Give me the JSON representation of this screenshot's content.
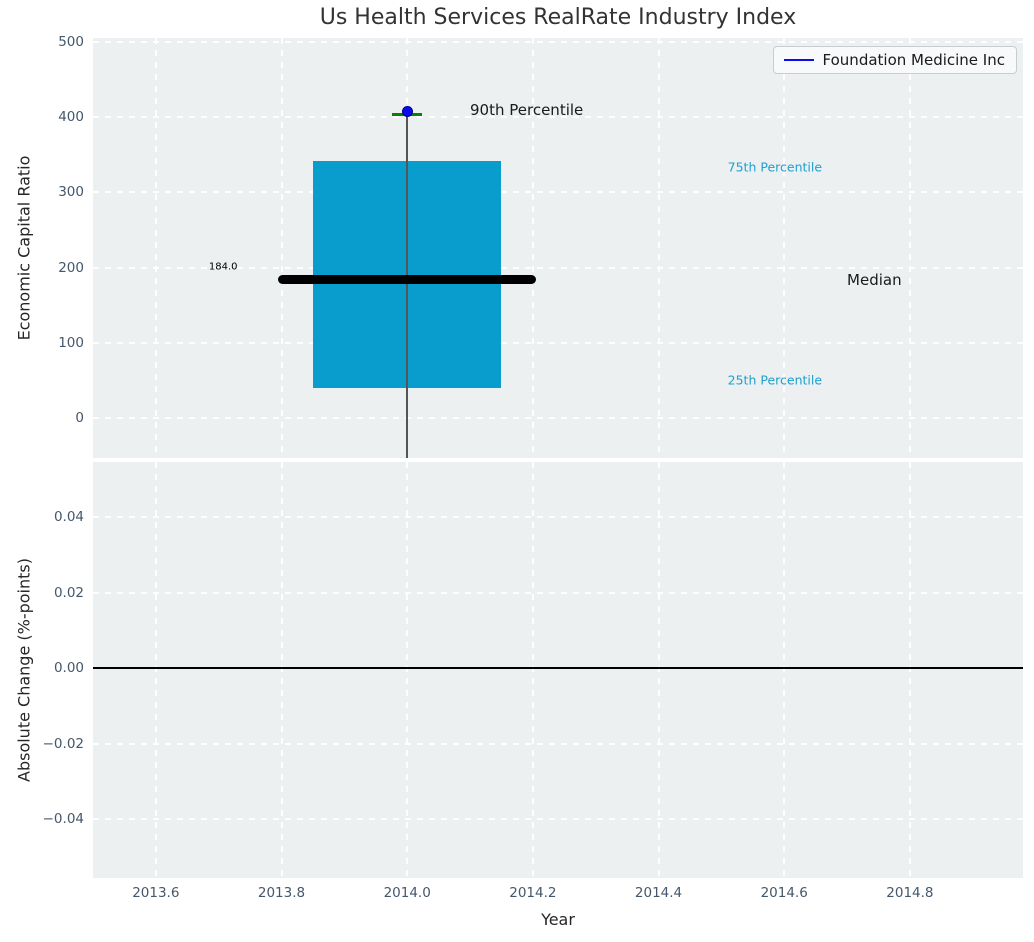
{
  "colors": {
    "plot_bg": "#ecf0f1",
    "grid": "#ffffff",
    "tick_label": "#45576b",
    "axis_label": "#262626",
    "title": "#333333",
    "box_fill": "#099dce",
    "median_line": "#000000",
    "whisker": "#555555",
    "cap_green": "#0b7f0b",
    "point_blue": "#0b0bee",
    "annotation_cyan": "#1f9fd0",
    "annotation_dark": "#1a1a1a",
    "zero_line": "#000000"
  },
  "chart_data": [
    {
      "type": "box",
      "title": "Us Health Services RealRate Industry Index",
      "ylabel": "Economic Capital Ratio",
      "xlim": [
        2013.5,
        2014.98
      ],
      "ylim": [
        -53,
        505
      ],
      "grid": true,
      "show_xtick_labels": false,
      "xticks": [
        {
          "v": 2013.6,
          "label": "2013.6"
        },
        {
          "v": 2013.8,
          "label": "2013.8"
        },
        {
          "v": 2014.0,
          "label": "2014.0"
        },
        {
          "v": 2014.2,
          "label": "2014.2"
        },
        {
          "v": 2014.4,
          "label": "2014.4"
        },
        {
          "v": 2014.6,
          "label": "2014.6"
        },
        {
          "v": 2014.8,
          "label": "2014.8"
        }
      ],
      "yticks": [
        {
          "v": 0,
          "label": "0"
        },
        {
          "v": 100,
          "label": "100"
        },
        {
          "v": 200,
          "label": "200"
        },
        {
          "v": 300,
          "label": "300"
        },
        {
          "v": 400,
          "label": "400"
        },
        {
          "v": 500,
          "label": "500"
        }
      ],
      "legend": {
        "label": "Foundation Medicine Inc",
        "position": "upper right"
      },
      "series": [
        {
          "name": "Foundation Medicine Inc",
          "x": 2014.0,
          "company_value": 408,
          "percentile_90": 404,
          "percentile_75": 342,
          "median": 184.0,
          "percentile_25": 40,
          "whisker_bottom_clipped_at": -53,
          "box_left": 2013.85,
          "box_right": 2014.15,
          "median_line_left": 2013.795,
          "median_line_right": 2014.205,
          "cap_halfwidth": 0.024
        }
      ],
      "annotations": [
        {
          "text": "90th Percentile",
          "x": 2014.1,
          "y": 410,
          "anchor": "start",
          "size": 15,
          "color": "#1a1a1a"
        },
        {
          "text": "75th Percentile",
          "x": 2014.51,
          "y": 334,
          "anchor": "start",
          "size": 12.5,
          "color": "#1f9fd0"
        },
        {
          "text": "Median",
          "x": 2014.7,
          "y": 184,
          "anchor": "start",
          "size": 15,
          "color": "#1a1a1a"
        },
        {
          "text": "25th Percentile",
          "x": 2014.51,
          "y": 50,
          "anchor": "start",
          "size": 12.5,
          "color": "#1f9fd0"
        },
        {
          "text": "184.0",
          "x": 2013.73,
          "y": 201,
          "anchor": "end",
          "size": 10,
          "color": "#000000"
        }
      ]
    },
    {
      "type": "line",
      "ylabel": "Absolute Change (%-points)",
      "xlabel": "Year",
      "xlim": [
        2013.5,
        2014.98
      ],
      "ylim": [
        -0.0556,
        0.0546
      ],
      "grid": true,
      "show_xtick_labels": true,
      "xticks": [
        {
          "v": 2013.6,
          "label": "2013.6"
        },
        {
          "v": 2013.8,
          "label": "2013.8"
        },
        {
          "v": 2014.0,
          "label": "2014.0"
        },
        {
          "v": 2014.2,
          "label": "2014.2"
        },
        {
          "v": 2014.4,
          "label": "2014.4"
        },
        {
          "v": 2014.6,
          "label": "2014.6"
        },
        {
          "v": 2014.8,
          "label": "2014.8"
        }
      ],
      "yticks": [
        {
          "v": 0.04,
          "label": "0.04"
        },
        {
          "v": 0.02,
          "label": "0.02"
        },
        {
          "v": 0.0,
          "label": "0.00"
        },
        {
          "v": -0.02,
          "label": "−0.02"
        },
        {
          "v": -0.04,
          "label": "−0.04"
        }
      ],
      "zero_line": 0.0,
      "series": []
    }
  ]
}
